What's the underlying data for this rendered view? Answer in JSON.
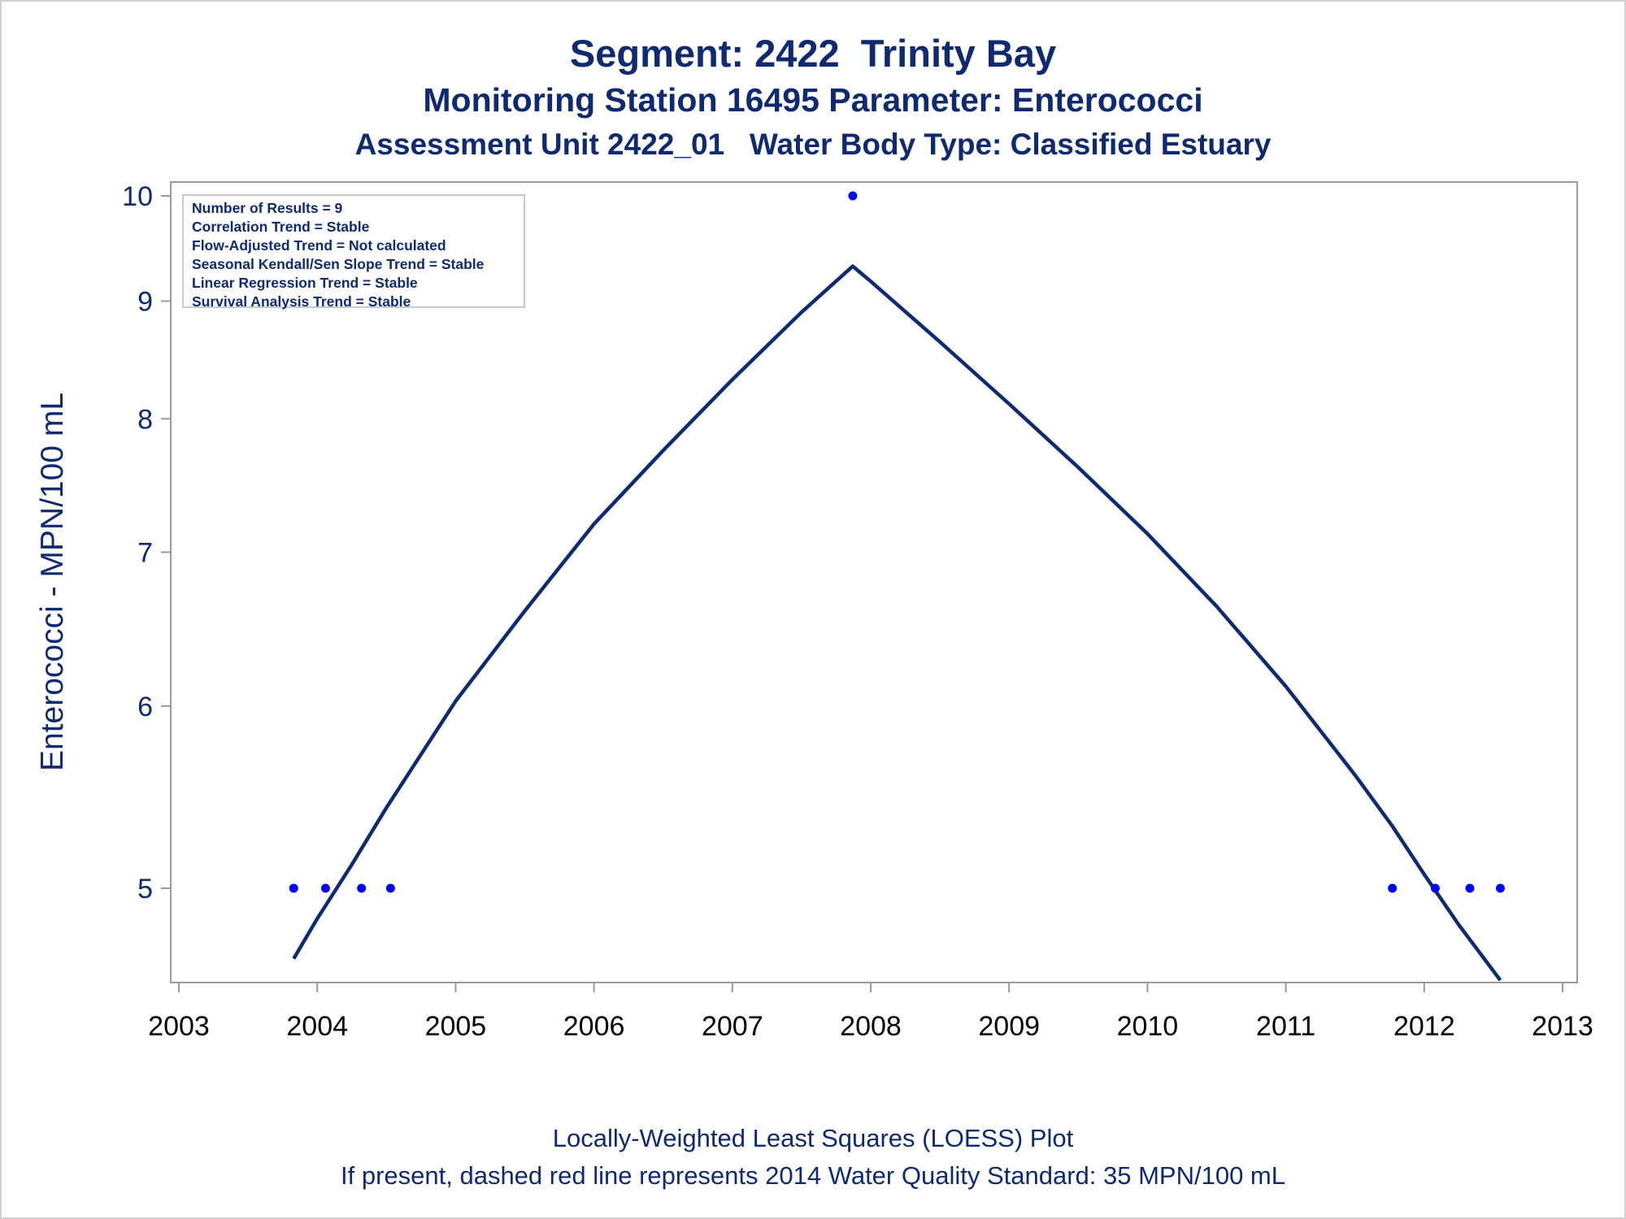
{
  "titles": {
    "line1": "Segment: 2422  Trinity Bay",
    "line2": "Monitoring Station 16495 Parameter: Enterococci",
    "line3": "Assessment Unit 2422_01   Water Body Type: Classified Estuary"
  },
  "footer": {
    "line1": "Locally-Weighted Least Squares (LOESS) Plot",
    "line2": "If present, dashed red line represents 2014 Water Quality Standard: 35 MPN/100 mL"
  },
  "stats": [
    "Number of Results = 9",
    "Correlation Trend = Stable",
    "Flow-Adjusted Trend = Not calculated",
    "Seasonal Kendall/Sen Slope Trend = Stable",
    "Linear Regression Trend = Stable",
    "Survival Analysis Trend = Stable"
  ],
  "colors": {
    "text": "#0f2a6e",
    "loess_line": "#0f2a6e",
    "points": "#0000ff",
    "axis": "#9a9a9a"
  },
  "chart_data": {
    "type": "scatter",
    "title": "Segment: 2422  Trinity Bay",
    "ylabel": "Enterococci - MPN/100 mL",
    "xlabel": "",
    "yscale": "log",
    "xlim": [
      2003.0,
      2013.0
    ],
    "ylim": [
      4.6,
      10.0
    ],
    "x_ticks": [
      "2003",
      "2004",
      "2005",
      "2006",
      "2007",
      "2008",
      "2009",
      "2010",
      "2011",
      "2012",
      "2013"
    ],
    "y_ticks": [
      "5",
      "6",
      "7",
      "8",
      "9",
      "10"
    ],
    "grid": false,
    "points": {
      "x": [
        2003.83,
        2004.06,
        2004.32,
        2004.53,
        2007.87,
        2011.77,
        2012.08,
        2012.33,
        2012.55
      ],
      "y": [
        5,
        5,
        5,
        5,
        10,
        5,
        5,
        5,
        5
      ]
    },
    "loess": {
      "x": [
        2003.83,
        2004.0,
        2004.25,
        2004.5,
        2005.0,
        2005.5,
        2006.0,
        2006.5,
        2007.0,
        2007.5,
        2007.87,
        2008.0,
        2008.5,
        2009.0,
        2009.5,
        2010.0,
        2010.5,
        2011.0,
        2011.5,
        2011.77,
        2012.0,
        2012.25,
        2012.55
      ],
      "y": [
        4.66,
        4.85,
        5.12,
        5.42,
        6.03,
        6.6,
        7.2,
        7.75,
        8.32,
        8.9,
        9.32,
        9.18,
        8.64,
        8.12,
        7.62,
        7.13,
        6.63,
        6.12,
        5.6,
        5.32,
        5.07,
        4.82,
        4.56
      ]
    }
  }
}
